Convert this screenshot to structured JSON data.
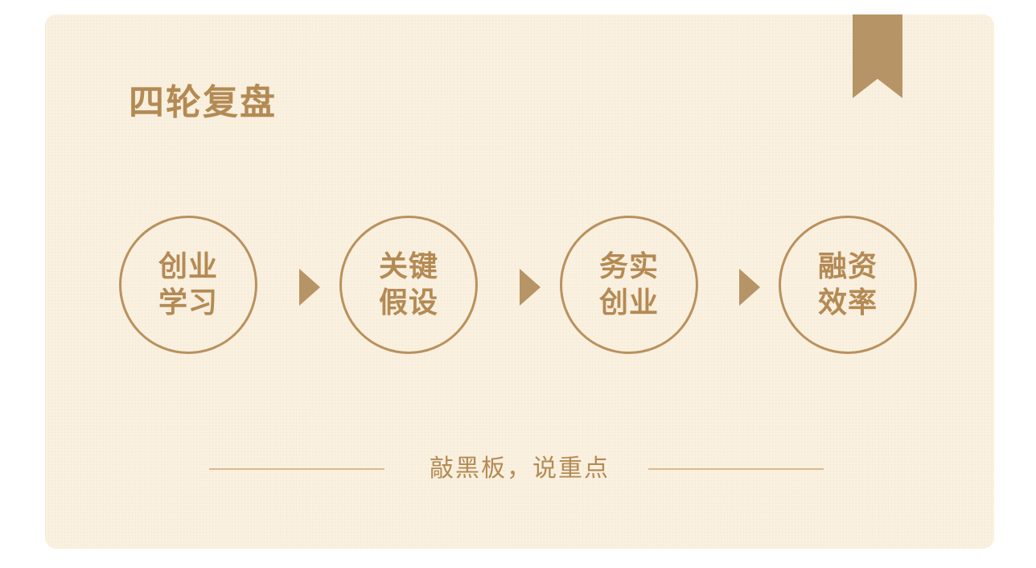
{
  "title": "四轮复盘",
  "steps": [
    {
      "line1": "创业",
      "line2": "学习"
    },
    {
      "line1": "关键",
      "line2": "假设"
    },
    {
      "line1": "务实",
      "line2": "创业"
    },
    {
      "line1": "融资",
      "line2": "效率"
    }
  ],
  "footer": "敲黑板，说重点",
  "colors": {
    "accent": "#b48a54",
    "background": "#faf1e1",
    "bookmark": "#b69466"
  }
}
